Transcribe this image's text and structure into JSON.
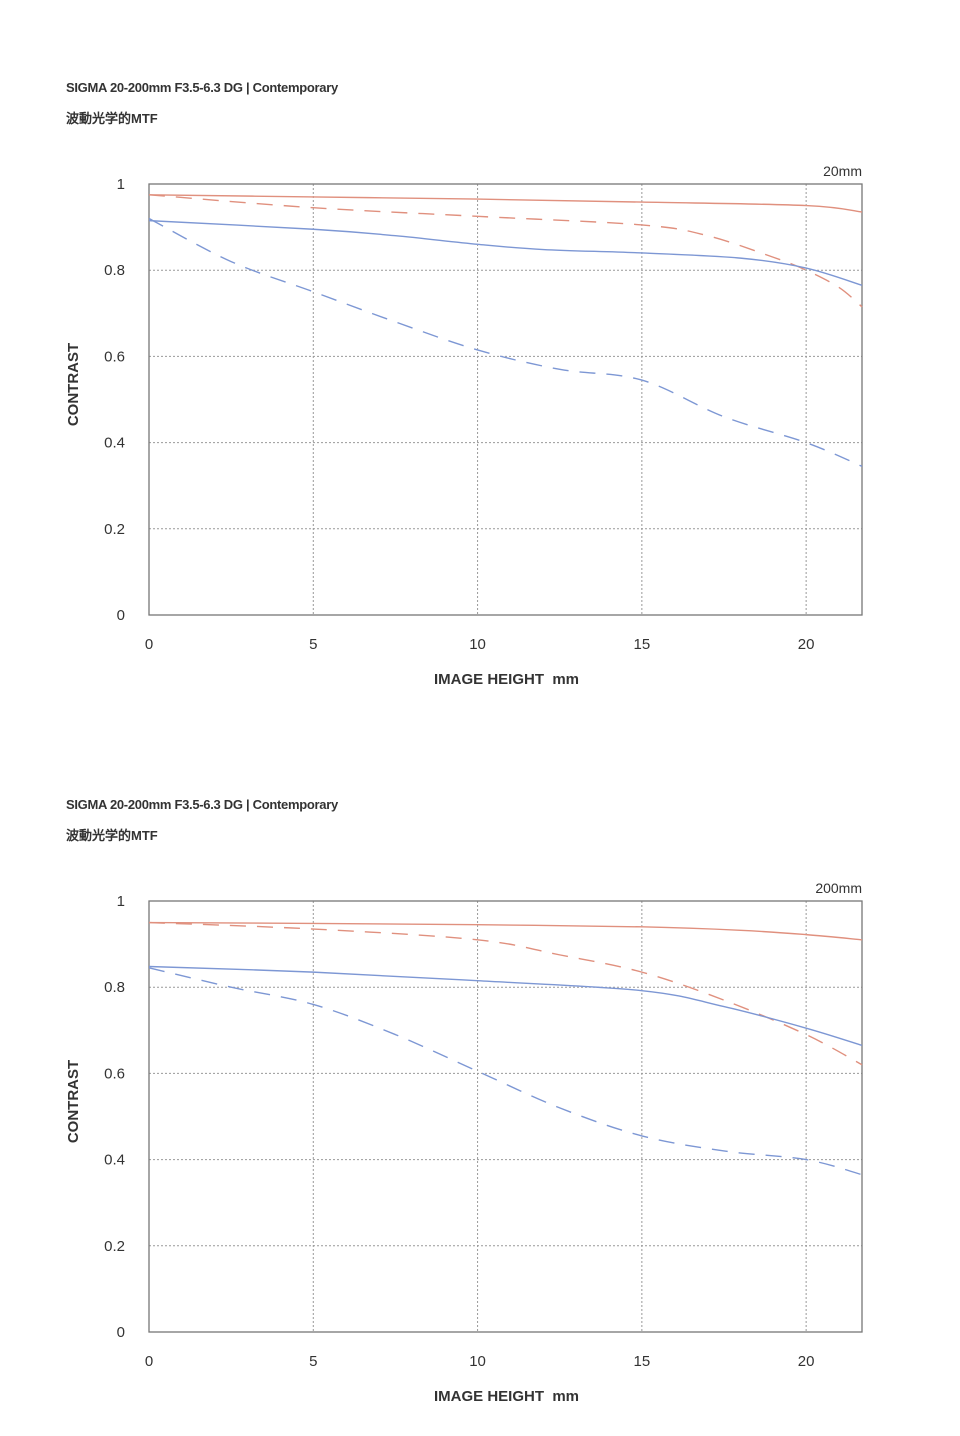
{
  "panels": [
    {
      "title": "SIGMA 20-200mm F3.5-6.3 DG | Contemporary",
      "subtitle": "波動光学的MTF",
      "focal_label": "20mm"
    },
    {
      "title": "SIGMA 20-200mm F3.5-6.3 DG | Contemporary",
      "subtitle": "波動光学的MTF",
      "focal_label": "200mm"
    }
  ],
  "colors": {
    "red": "#e0907e",
    "blue": "#7d97d4",
    "grid": "#999999",
    "frame": "#777777"
  },
  "chart_data": [
    {
      "type": "line",
      "title": "20mm",
      "xlabel": "IMAGE HEIGHT  mm",
      "ylabel": "CONTRAST",
      "xlim": [
        0,
        21.7
      ],
      "ylim": [
        0,
        1
      ],
      "x_ticks": [
        "0",
        "5",
        "10",
        "15",
        "20"
      ],
      "y_ticks": [
        "0",
        "0.2",
        "0.4",
        "0.6",
        "0.8",
        "1"
      ],
      "grid": true,
      "series": [
        {
          "color": "red",
          "style": "solid",
          "x": [
            0,
            5,
            10,
            15,
            20,
            21.7
          ],
          "y": [
            0.975,
            0.97,
            0.965,
            0.958,
            0.95,
            0.935
          ]
        },
        {
          "color": "red",
          "style": "dashed",
          "x": [
            0,
            5,
            10,
            15,
            17,
            19,
            20,
            21,
            21.7
          ],
          "y": [
            0.975,
            0.945,
            0.925,
            0.905,
            0.88,
            0.83,
            0.8,
            0.76,
            0.715
          ]
        },
        {
          "color": "blue",
          "style": "solid",
          "x": [
            0,
            5,
            7.5,
            10,
            12,
            15,
            18,
            20,
            21.7
          ],
          "y": [
            0.915,
            0.895,
            0.88,
            0.86,
            0.848,
            0.84,
            0.828,
            0.805,
            0.765
          ]
        },
        {
          "color": "blue",
          "style": "dashed",
          "x": [
            0,
            2.5,
            5,
            7.5,
            10,
            12.5,
            15,
            17.5,
            20,
            21.7
          ],
          "y": [
            0.92,
            0.82,
            0.75,
            0.68,
            0.615,
            0.57,
            0.545,
            0.46,
            0.4,
            0.345
          ]
        }
      ]
    },
    {
      "type": "line",
      "title": "200mm",
      "xlabel": "IMAGE HEIGHT  mm",
      "ylabel": "CONTRAST",
      "xlim": [
        0,
        21.7
      ],
      "ylim": [
        0,
        1
      ],
      "x_ticks": [
        "0",
        "5",
        "10",
        "15",
        "20"
      ],
      "y_ticks": [
        "0",
        "0.2",
        "0.4",
        "0.6",
        "0.8",
        "1"
      ],
      "grid": true,
      "series": [
        {
          "color": "red",
          "style": "solid",
          "x": [
            0,
            5,
            10,
            15,
            18,
            20,
            21.7
          ],
          "y": [
            0.95,
            0.948,
            0.945,
            0.94,
            0.932,
            0.922,
            0.91
          ]
        },
        {
          "color": "red",
          "style": "dashed",
          "x": [
            0,
            5,
            10,
            12.5,
            15,
            17.5,
            20,
            21.7
          ],
          "y": [
            0.95,
            0.935,
            0.91,
            0.875,
            0.835,
            0.77,
            0.69,
            0.62
          ]
        },
        {
          "color": "blue",
          "style": "solid",
          "x": [
            0,
            5,
            10,
            15,
            17.5,
            20,
            21.7
          ],
          "y": [
            0.848,
            0.835,
            0.815,
            0.792,
            0.755,
            0.705,
            0.665
          ]
        },
        {
          "color": "blue",
          "style": "dashed",
          "x": [
            0,
            2.5,
            5,
            7.5,
            10,
            12.5,
            15,
            17.5,
            20,
            21.7
          ],
          "y": [
            0.845,
            0.8,
            0.76,
            0.69,
            0.605,
            0.52,
            0.455,
            0.42,
            0.4,
            0.365
          ]
        }
      ]
    }
  ]
}
